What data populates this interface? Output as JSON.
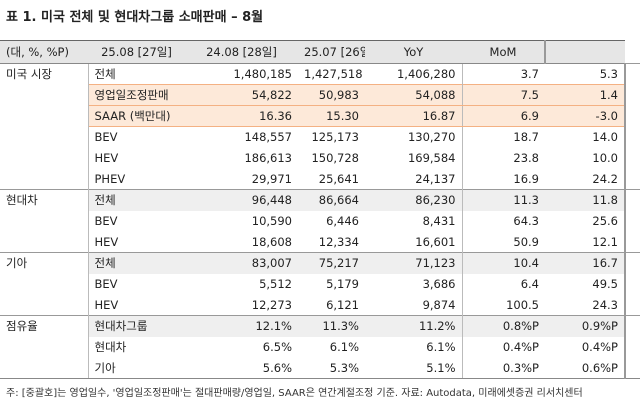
{
  "title": "표 1. 미국 전체 및 현대차그룹 소매판매 – 8월",
  "table": {
    "header": [
      "(대, %, %P)",
      "25.08 [27일]",
      "24.08 [28일]",
      "25.07 [26일]",
      "YoY",
      "MoM"
    ],
    "groups": [
      {
        "name": "미국 시장",
        "rows": [
          [
            "전체",
            "1,480,185",
            "1,427,518",
            "1,406,280",
            "3.7",
            "5.3"
          ],
          [
            "영업일조정판매",
            "54,822",
            "50,983",
            "54,088",
            "7.5",
            "1.4"
          ],
          [
            "SAAR (백만대)",
            "16.36",
            "15.30",
            "16.87",
            "6.9",
            "-3.0"
          ],
          [
            "BEV",
            "148,557",
            "125,173",
            "130,270",
            "18.7",
            "14.0"
          ],
          [
            "HEV",
            "186,613",
            "150,728",
            "169,584",
            "23.8",
            "10.0"
          ],
          [
            "PHEV",
            "29,971",
            "25,641",
            "24,137",
            "16.9",
            "24.2"
          ]
        ]
      },
      {
        "name": "현대차",
        "rows": [
          [
            "전체",
            "96,448",
            "86,664",
            "86,230",
            "11.3",
            "11.8"
          ],
          [
            "BEV",
            "10,590",
            "6,446",
            "8,431",
            "64.3",
            "25.6"
          ],
          [
            "HEV",
            "18,608",
            "12,334",
            "16,601",
            "50.9",
            "12.1"
          ]
        ]
      },
      {
        "name": "기아",
        "rows": [
          [
            "전체",
            "83,007",
            "75,217",
            "71,123",
            "10.4",
            "16.7"
          ],
          [
            "BEV",
            "5,512",
            "5,179",
            "3,686",
            "6.4",
            "49.5"
          ],
          [
            "HEV",
            "12,273",
            "6,121",
            "9,874",
            "100.5",
            "24.3"
          ]
        ]
      },
      {
        "name": "점유율",
        "rows": [
          [
            "현대차그룹",
            "12.1%",
            "11.3%",
            "11.2%",
            "0.8%P",
            "0.9%P"
          ],
          [
            "현대차",
            "6.5%",
            "6.1%",
            "6.1%",
            "0.4%P",
            "0.4%P"
          ],
          [
            "기아",
            "5.6%",
            "5.3%",
            "5.1%",
            "0.3%P",
            "0.6%P"
          ]
        ]
      }
    ]
  },
  "footnote": "주: [중괄호]는 영업일수, '영업일조정판매'는 절대판매량/영업일, SAAR은 연간계절조정 기준. 자료: Autodata, 미래에셋증권 리서치센터"
}
